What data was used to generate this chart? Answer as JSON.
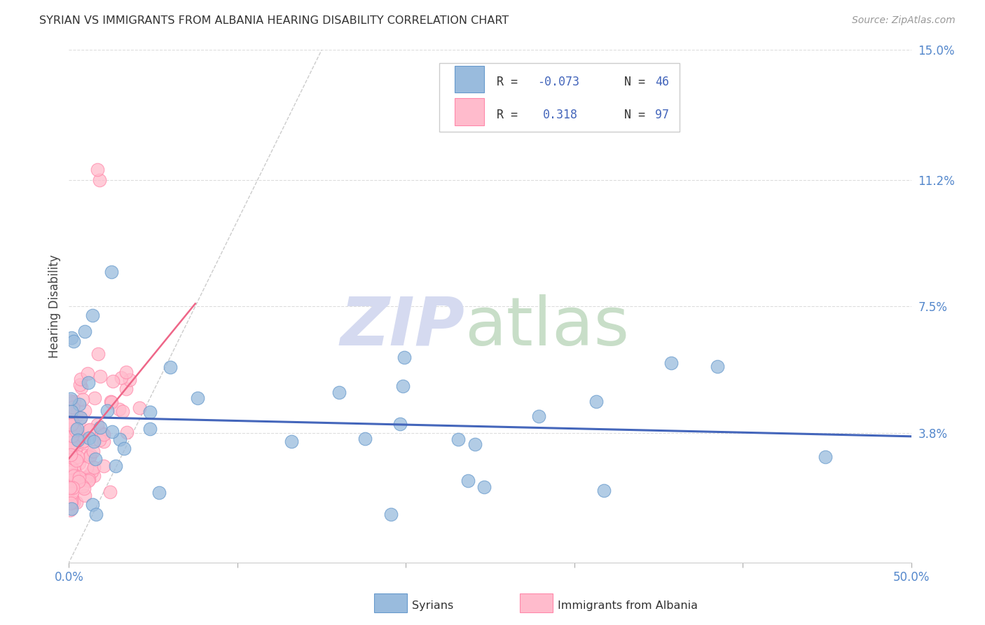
{
  "title": "SYRIAN VS IMMIGRANTS FROM ALBANIA HEARING DISABILITY CORRELATION CHART",
  "source": "Source: ZipAtlas.com",
  "ylabel": "Hearing Disability",
  "xlim": [
    0.0,
    0.5
  ],
  "ylim": [
    -0.005,
    0.155
  ],
  "plot_ylim": [
    0.0,
    0.15
  ],
  "xticks": [
    0.0,
    0.1,
    0.2,
    0.3,
    0.4,
    0.5
  ],
  "xticklabels": [
    "0.0%",
    "",
    "",
    "",
    "",
    "50.0%"
  ],
  "ytick_right_labels": [
    "15.0%",
    "11.2%",
    "7.5%",
    "3.8%"
  ],
  "ytick_right_values": [
    0.15,
    0.112,
    0.075,
    0.038
  ],
  "syrians_R": -0.073,
  "syrians_N": 46,
  "albania_R": 0.318,
  "albania_N": 97,
  "syrians_color": "#99BBDD",
  "syrians_edge_color": "#6699CC",
  "albania_color": "#FFBBCC",
  "albania_edge_color": "#FF88AA",
  "syrians_line_color": "#4466BB",
  "albania_line_color": "#EE6688",
  "diagonal_color": "#CCCCCC",
  "background_color": "#FFFFFF",
  "grid_color": "#DDDDDD",
  "tick_color": "#5588CC",
  "watermark_zip_color": "#D8DCF0",
  "watermark_atlas_color": "#C8E0C8",
  "legend_text_color": "#4466BB",
  "legend_R_color": "#CC4466"
}
